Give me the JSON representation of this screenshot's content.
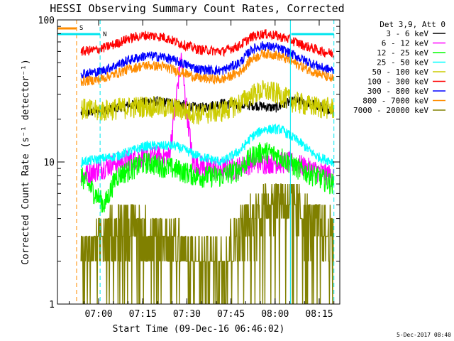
{
  "chart_data": {
    "type": "line",
    "title": "HESSI Observing Summary Count Rates, Corrected",
    "xlabel": "Start Time (09-Dec-16 06:46:02)",
    "ylabel": "Corrected Count Rate (s⁻¹ detector⁻¹)",
    "yscale": "log",
    "ylim": [
      1,
      100
    ],
    "xlim_minutes_after_0646": [
      0,
      96
    ],
    "xticks": [
      "07:00",
      "07:15",
      "07:30",
      "07:45",
      "08:00",
      "08:15"
    ],
    "xtick_minutes_after_0646": [
      14,
      29,
      44,
      59,
      74,
      89
    ],
    "yticks": [
      "1",
      "10",
      "100"
    ],
    "yticks_values": [
      1,
      10,
      100
    ],
    "legend_header": "Det 3,9, Att 0",
    "legend_position": "right",
    "flags": [
      {
        "label": "S",
        "color": "#ff8c00",
        "start_min": 0,
        "end_min": 6.5
      },
      {
        "label": "N",
        "color": "#00e5ee",
        "start_min": 0,
        "end_min": 14.5
      },
      {
        "label": "",
        "color": "#00e5ee",
        "start_min": 79.5,
        "end_min": 94
      }
    ],
    "vlines": [
      {
        "min": 6.5,
        "color": "#ff8c00",
        "style": "dashed"
      },
      {
        "min": 14.5,
        "color": "#00e5ee",
        "style": "dashed"
      },
      {
        "min": 79.2,
        "color": "#00e5ee",
        "style": "solid"
      },
      {
        "min": 94,
        "color": "#00e5ee",
        "style": "dashed"
      }
    ],
    "series": [
      {
        "name": "3 - 6 keV",
        "color": "#000000",
        "start": 8,
        "end": 94,
        "x": [
          8,
          20,
          32,
          40,
          48,
          56,
          62,
          68,
          74,
          80,
          86,
          94
        ],
        "y": [
          22,
          24,
          27,
          26,
          24,
          26,
          25,
          25,
          24,
          27,
          26,
          23
        ]
      },
      {
        "name": "6 - 12 keV",
        "color": "#ff00ff",
        "start": 8,
        "end": 94,
        "x": [
          8,
          20,
          30,
          38,
          42,
          46,
          52,
          60,
          66,
          72,
          80,
          86,
          94
        ],
        "y": [
          8,
          10,
          11,
          11,
          55,
          10,
          9,
          9,
          10,
          10,
          10,
          9,
          8
        ]
      },
      {
        "name": "12 - 25 keV",
        "color": "#00ff00",
        "start": 8,
        "end": 94,
        "x": [
          8,
          16,
          20,
          30,
          40,
          48,
          56,
          62,
          66,
          70,
          76,
          82,
          88,
          94
        ],
        "y": [
          8,
          5,
          8,
          10,
          9,
          8,
          8,
          9,
          11,
          12,
          11,
          9,
          8,
          7
        ]
      },
      {
        "name": "25 - 50 keV",
        "color": "#00ffff",
        "start": 8,
        "end": 94,
        "x": [
          8,
          20,
          30,
          40,
          48,
          56,
          62,
          66,
          70,
          76,
          82,
          88,
          94
        ],
        "y": [
          10,
          11,
          13,
          13,
          11,
          10,
          12,
          15,
          17,
          17,
          14,
          11,
          10
        ]
      },
      {
        "name": "50 - 100 keV",
        "color": "#cccc00",
        "start": 8,
        "end": 94,
        "x": [
          8,
          14,
          20,
          30,
          40,
          48,
          56,
          62,
          66,
          70,
          74,
          80,
          86,
          94
        ],
        "y": [
          24,
          23,
          24,
          25,
          24,
          22,
          23,
          26,
          30,
          32,
          31,
          27,
          25,
          24
        ]
      },
      {
        "name": "100 - 300 keV",
        "color": "#ff0000",
        "start": 8,
        "end": 94,
        "x": [
          8,
          14,
          20,
          24,
          30,
          36,
          42,
          48,
          56,
          62,
          66,
          70,
          74,
          78,
          84,
          90,
          94
        ],
        "y": [
          60,
          62,
          68,
          74,
          78,
          76,
          68,
          62,
          60,
          66,
          76,
          80,
          78,
          74,
          66,
          60,
          58
        ]
      },
      {
        "name": "300 - 800 keV",
        "color": "#0000ff",
        "start": 8,
        "end": 94,
        "x": [
          8,
          14,
          20,
          24,
          30,
          36,
          42,
          48,
          56,
          62,
          66,
          70,
          74,
          78,
          84,
          90,
          94
        ],
        "y": [
          42,
          43,
          48,
          52,
          56,
          55,
          50,
          45,
          44,
          50,
          62,
          66,
          64,
          60,
          52,
          46,
          44
        ]
      },
      {
        "name": "800 - 7000 keV",
        "color": "#ff8c00",
        "start": 8,
        "end": 94,
        "x": [
          8,
          14,
          20,
          24,
          30,
          36,
          42,
          48,
          56,
          62,
          66,
          70,
          74,
          78,
          84,
          90,
          94
        ],
        "y": [
          37,
          38,
          42,
          45,
          48,
          47,
          43,
          39,
          38,
          43,
          53,
          58,
          57,
          53,
          46,
          41,
          38
        ]
      },
      {
        "name": "7000 - 20000 keV",
        "color": "#808000",
        "start": 8,
        "end": 94,
        "x": [
          8,
          16,
          24,
          32,
          40,
          48,
          56,
          60,
          66,
          70,
          74,
          80,
          86,
          94
        ],
        "y": [
          2,
          3,
          4,
          3,
          3,
          2,
          2,
          3,
          4,
          5,
          6,
          5,
          4,
          3
        ]
      }
    ]
  },
  "footer_timestamp": "5-Dec-2017 08:40"
}
